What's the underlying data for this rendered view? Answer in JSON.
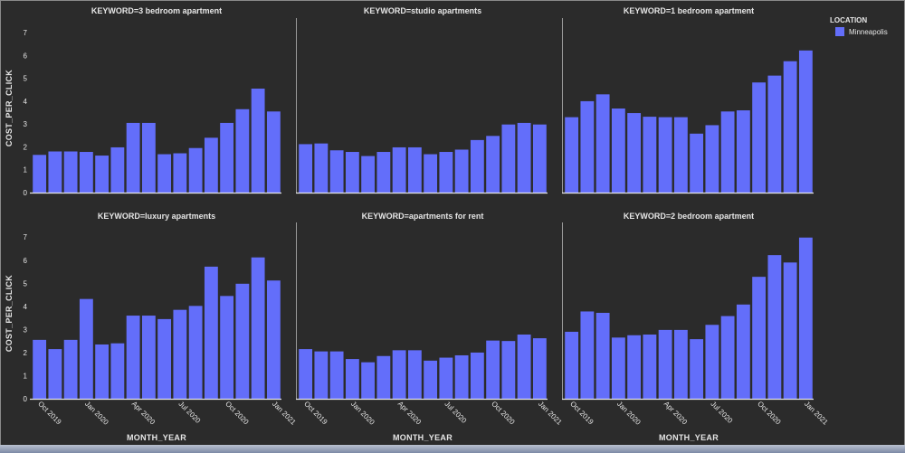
{
  "chart_data": {
    "type": "bar",
    "legend": {
      "title": "LOCATION",
      "placement": "top-right"
    },
    "ylabel": "COST_PER_CLICK",
    "xlabel": "MONTH_YEAR",
    "ylim": [
      0,
      7.4
    ],
    "y_ticks": [
      0,
      1,
      2,
      3,
      4,
      5,
      6,
      7
    ],
    "x_tick_labels": [
      "Oct 2019",
      "Jan 2020",
      "Apr 2020",
      "Jul 2020",
      "Oct 2020",
      "Jan 2021"
    ],
    "x_tick_index": [
      0,
      3,
      6,
      9,
      12,
      15
    ],
    "categories": [
      "2019-10",
      "2019-11",
      "2019-12",
      "2020-01",
      "2020-02",
      "2020-03",
      "2020-04",
      "2020-05",
      "2020-06",
      "2020-07",
      "2020-08",
      "2020-09",
      "2020-10",
      "2020-11",
      "2020-12",
      "2021-01"
    ],
    "series": [
      {
        "name": "Minneapolis",
        "color": "#636efa"
      }
    ],
    "facets": [
      {
        "title": "KEYWORD=3 bedroom apartment",
        "values": [
          1.65,
          1.8,
          1.8,
          1.78,
          1.62,
          1.98,
          3.05,
          3.05,
          1.68,
          1.72,
          1.95,
          2.4,
          3.05,
          3.65,
          4.55,
          3.55
        ]
      },
      {
        "title": "KEYWORD=studio apartments",
        "values": [
          2.12,
          2.15,
          1.85,
          1.78,
          1.6,
          1.78,
          1.98,
          1.98,
          1.68,
          1.78,
          1.88,
          2.3,
          2.48,
          2.98,
          3.05,
          2.98
        ]
      },
      {
        "title": "KEYWORD=1 bedroom apartment",
        "values": [
          3.3,
          4.0,
          4.3,
          3.68,
          3.48,
          3.32,
          3.3,
          3.3,
          2.58,
          2.95,
          3.55,
          3.6,
          4.82,
          5.12,
          5.75,
          6.22
        ]
      },
      {
        "title": "KEYWORD=luxury apartments",
        "values": [
          2.55,
          2.15,
          2.55,
          4.32,
          2.35,
          2.4,
          3.6,
          3.6,
          3.45,
          3.85,
          4.02,
          5.72,
          4.45,
          4.98,
          6.12,
          5.12
        ]
      },
      {
        "title": "KEYWORD=apartments for rent",
        "values": [
          2.15,
          2.05,
          2.05,
          1.72,
          1.58,
          1.85,
          2.1,
          2.1,
          1.65,
          1.78,
          1.88,
          2.0,
          2.52,
          2.5,
          2.78,
          2.62
        ]
      },
      {
        "title": "KEYWORD=2 bedroom apartment",
        "values": [
          2.9,
          3.78,
          3.72,
          2.65,
          2.75,
          2.78,
          2.98,
          2.98,
          2.58,
          3.2,
          3.58,
          4.08,
          5.28,
          6.22,
          5.9,
          6.98
        ]
      }
    ]
  }
}
